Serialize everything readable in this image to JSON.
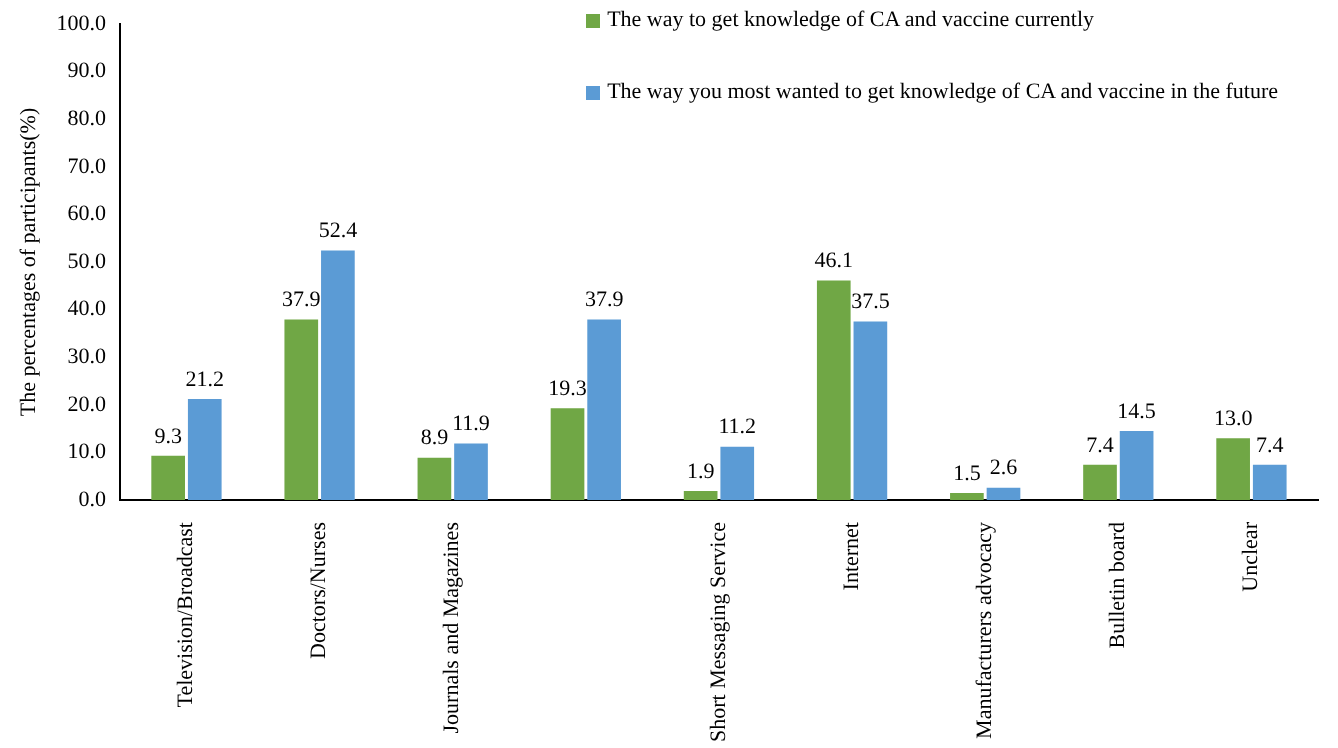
{
  "chart_data": {
    "type": "bar",
    "ylabel": "The percentages of participants(%)",
    "categories": [
      "Television/Broadcast",
      "Doctors/Nurses",
      "Journals and Magazines",
      null,
      "Short Messaging Service",
      "Internet",
      "Manufacturers advocacy",
      "Bulletin board",
      "Unclear"
    ],
    "series": [
      {
        "name": "The way to get knowledge of CA and vaccine currently",
        "color": "#70a745",
        "values": [
          9.3,
          37.9,
          8.9,
          19.3,
          1.9,
          46.1,
          1.5,
          7.4,
          13.0
        ],
        "value_labels": [
          "9.3",
          "37.9",
          "8.9",
          "19.3",
          "1.9",
          "46.1",
          "1.5",
          "7.4",
          "13.0"
        ]
      },
      {
        "name": "The way you most wanted to get knowledge of CA and vaccine in the future",
        "color": "#5b9bd5",
        "values": [
          21.2,
          52.4,
          11.9,
          37.9,
          11.2,
          37.5,
          2.6,
          14.5,
          7.4
        ],
        "value_labels": [
          "21.2",
          "52.4",
          "11.9",
          "37.9",
          "11.2",
          "37.5",
          "2.6",
          "14.5",
          "7.4"
        ]
      }
    ],
    "ylim": [
      0,
      100
    ],
    "yticks": [
      {
        "value": 0,
        "label": "0.0"
      },
      {
        "value": 10,
        "label": "10.0"
      },
      {
        "value": 20,
        "label": "20.0"
      },
      {
        "value": 30,
        "label": "30.0"
      },
      {
        "value": 40,
        "label": "40.0"
      },
      {
        "value": 50,
        "label": "50.0"
      },
      {
        "value": 60,
        "label": "60.0"
      },
      {
        "value": 70,
        "label": "70.0"
      },
      {
        "value": 80,
        "label": "80.0"
      },
      {
        "value": 90,
        "label": "90.0"
      },
      {
        "value": 100,
        "label": "100.0"
      }
    ],
    "grid": false,
    "legend": "top right"
  }
}
